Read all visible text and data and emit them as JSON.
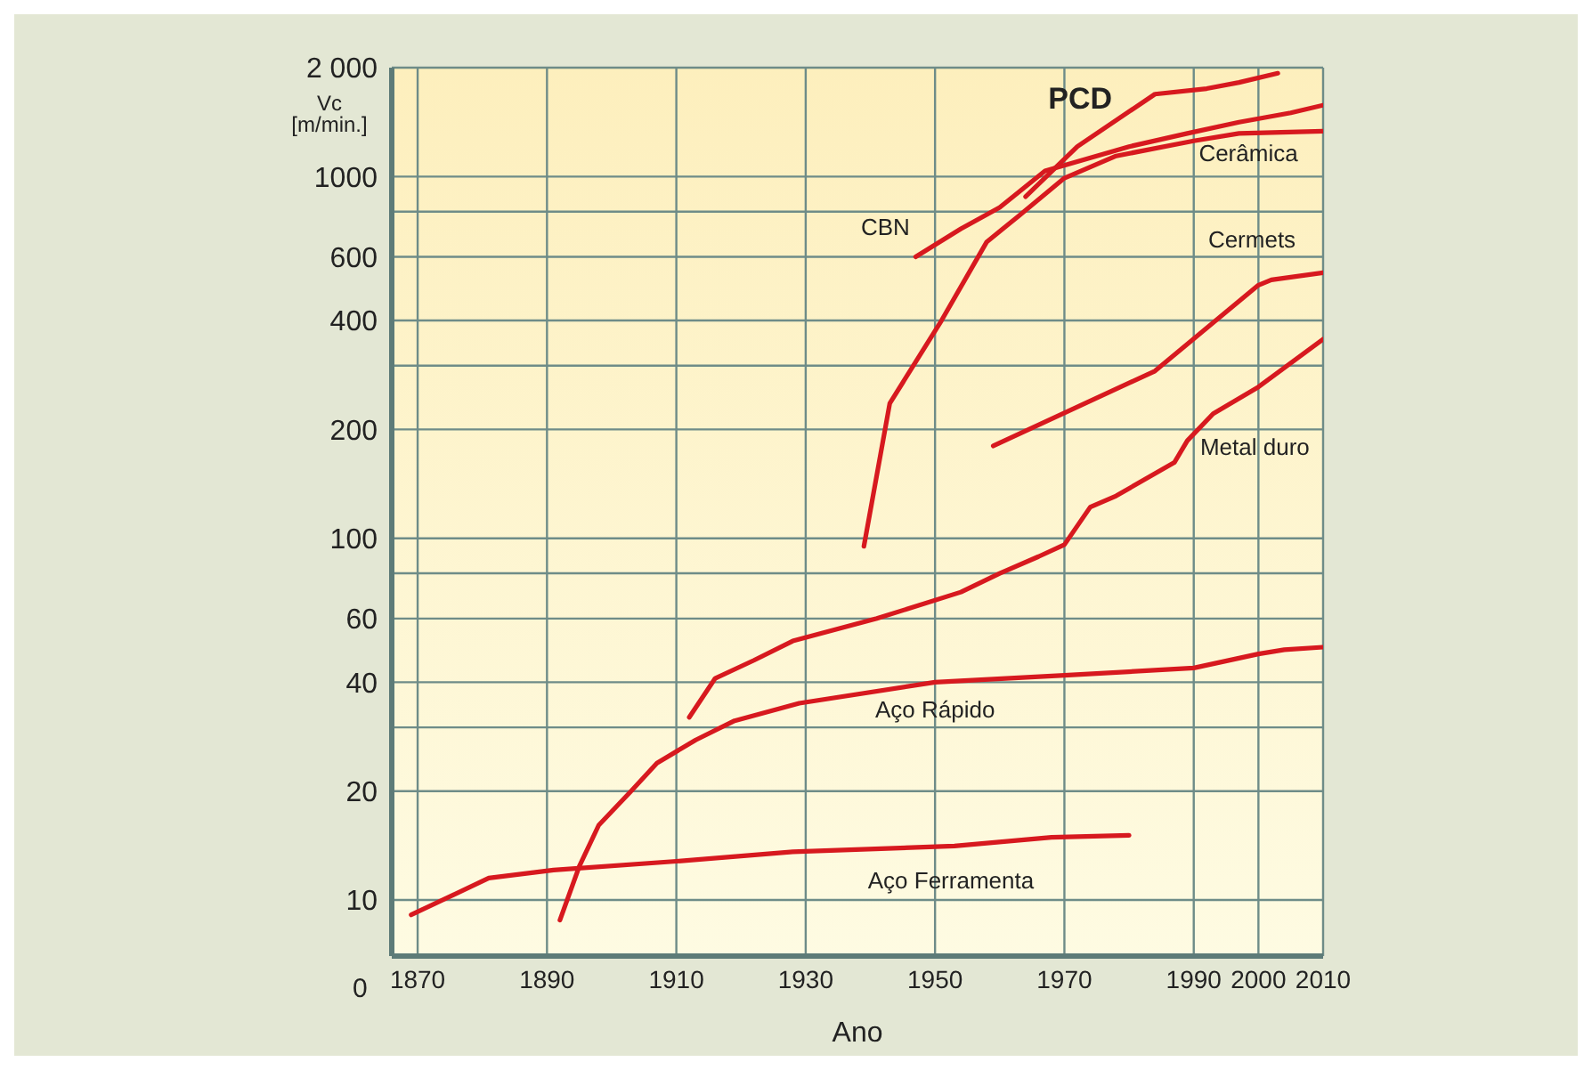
{
  "chart_data": {
    "type": "line",
    "xlabel": "Ano",
    "ylabel": "Vc [m/min.]",
    "log": true,
    "grid": true,
    "marker": "none",
    "line_style": "solid",
    "annotations": [
      "0"
    ],
    "xlim": [
      1866,
      2010
    ],
    "xticks": [
      1870,
      1890,
      1910,
      1930,
      1950,
      1970,
      1990,
      2000,
      2010
    ],
    "ylim": [
      7,
      2000
    ],
    "yticks": [
      10,
      20,
      {
        "value": 30,
        "label": null
      },
      40,
      60,
      {
        "value": 80,
        "label": null
      },
      100,
      200,
      {
        "value": 300,
        "label": null
      },
      400,
      600,
      {
        "value": 800,
        "label": null
      },
      1000,
      {
        "value": 2000,
        "label": "2 000"
      }
    ],
    "series": [
      {
        "name": "PCD",
        "color": "#d7191f",
        "x": [
          1964,
          1972,
          1984,
          1992,
          1997,
          2003
        ],
        "values": [
          880,
          1210,
          1690,
          1750,
          1820,
          1930
        ]
      },
      {
        "name": "CBN",
        "color": "#d7191f",
        "x": [
          1947,
          1954,
          1960,
          1967,
          1980,
          1989,
          1997,
          2005,
          2010
        ],
        "values": [
          600,
          717,
          822,
          1036,
          1210,
          1316,
          1414,
          1500,
          1575
        ]
      },
      {
        "name": "Cerâmica",
        "color": "#d7191f",
        "x": [
          1939,
          1943,
          1951,
          1958,
          1963,
          1970,
          1978,
          1990,
          1997,
          2010
        ],
        "values": [
          95,
          236,
          400,
          660,
          780,
          990,
          1140,
          1255,
          1316,
          1335
        ]
      },
      {
        "name": "Cermets",
        "color": "#d7191f",
        "x": [
          1959,
          1984,
          2000,
          2002,
          2010
        ],
        "values": [
          180,
          290,
          501,
          518,
          542
        ]
      },
      {
        "name": "Metal duro",
        "color": "#d7191f",
        "x": [
          1912,
          1916,
          1922,
          1928,
          1941,
          1954,
          1960,
          1966,
          1970,
          1974,
          1978,
          1987,
          1989,
          1993,
          2000,
          2010
        ],
        "values": [
          32,
          41,
          46,
          52,
          60,
          71,
          80,
          89,
          96,
          122,
          131,
          162,
          186,
          221,
          262,
          355
        ]
      },
      {
        "name": "Aço Rápido",
        "color": "#d7191f",
        "x": [
          1892,
          1895,
          1898,
          1903,
          1907,
          1913,
          1919,
          1929,
          1950,
          1970,
          1990,
          2000,
          2004,
          2010
        ],
        "values": [
          8.8,
          12.4,
          16.1,
          20,
          23.9,
          27.7,
          31.3,
          35,
          40,
          41.8,
          43.8,
          47.9,
          49.2,
          50
        ]
      },
      {
        "name": "Aço Ferramenta",
        "color": "#d7191f",
        "x": [
          1869,
          1881,
          1891,
          1910,
          1928,
          1953,
          1968,
          1980
        ],
        "values": [
          9.1,
          11.5,
          12.1,
          12.8,
          13.6,
          14.1,
          14.9,
          15.1
        ]
      }
    ]
  }
}
